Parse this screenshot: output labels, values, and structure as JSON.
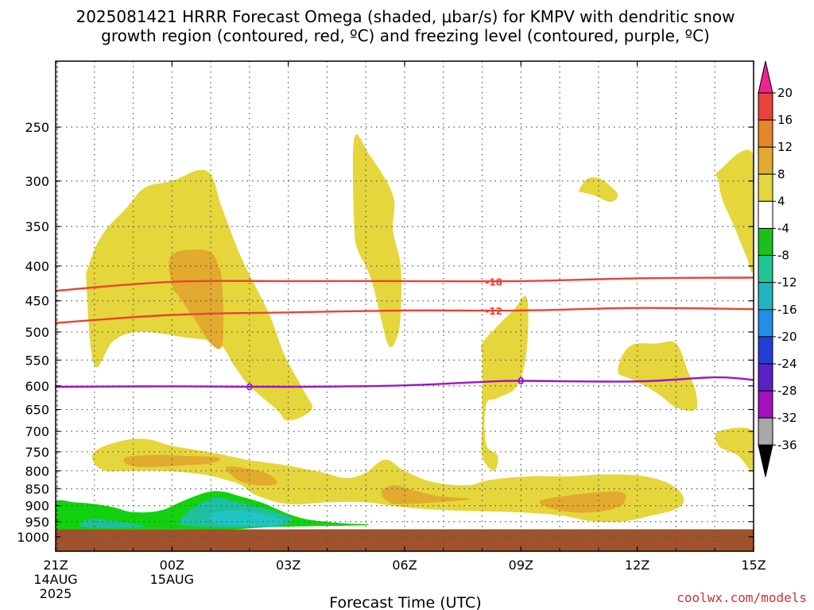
{
  "title_line1": "2025081421 HRRR Forecast Omega (shaded, μbar/s) for KMPV with dendritic snow",
  "title_line2": "growth region (contoured, red, ºC) and freezing level (contoured, purple, ºC)",
  "credit": "coolwx.com/models",
  "credit_color": "#cc3333",
  "chart_data": {
    "type": "time-height cross section",
    "title": "2025081421 HRRR Forecast Omega (shaded, μbar/s) for KMPV with dendritic snow growth region (contoured, red, ºC) and freezing level (contoured, purple, ºC)",
    "xlabel": "Forecast Time (UTC)",
    "ylabel": "",
    "x_ticks": [
      {
        "hours": 0,
        "label": "21Z",
        "date": "14AUG",
        "year": "2025"
      },
      {
        "hours": 3,
        "label": "00Z",
        "date": "15AUG"
      },
      {
        "hours": 6,
        "label": "03Z"
      },
      {
        "hours": 9,
        "label": "06Z"
      },
      {
        "hours": 12,
        "label": "09Z"
      },
      {
        "hours": 15,
        "label": "12Z"
      },
      {
        "hours": 18,
        "label": "15Z"
      }
    ],
    "xlim": [
      0,
      18
    ],
    "y_ticks": [
      250,
      300,
      350,
      400,
      450,
      500,
      550,
      600,
      650,
      700,
      750,
      800,
      850,
      900,
      950,
      1000
    ],
    "ylim": [
      200,
      1050
    ],
    "y_scale": "log pressure (hPa)",
    "grid": true,
    "colorbar": {
      "ticks": [
        "20",
        "16",
        "12",
        "8",
        "4",
        "-4",
        "-8",
        "-12",
        "-16",
        "-20",
        "-24",
        "-28",
        "-32",
        "-36"
      ],
      "colors": [
        "#f0228c",
        "#e8433a",
        "#e7852a",
        "#e2aa2e",
        "#e5d63b",
        "#ffffff",
        "#19c21b",
        "#1fc597",
        "#21b6bf",
        "#1f8fe7",
        "#2240d8",
        "#5b21c6",
        "#a210c2",
        "#a8a8a8",
        "#000000"
      ]
    },
    "shading_colors": {
      "yellow": "#e5d63b",
      "orange": "#e2aa2e",
      "green": "#12d10f",
      "teal": "#1fc0a0",
      "cyan": "#21c5c5",
      "ground": "#a0522d"
    },
    "contours": [
      {
        "name": "-18",
        "color": "#ea4335",
        "points": [
          [
            0,
            435
          ],
          [
            3,
            422
          ],
          [
            6,
            421
          ],
          [
            9,
            421
          ],
          [
            12,
            421
          ],
          [
            15,
            417
          ],
          [
            18,
            416
          ]
        ]
      },
      {
        "name": "-12",
        "color": "#ea4335",
        "points": [
          [
            0,
            485
          ],
          [
            3,
            472
          ],
          [
            6,
            468
          ],
          [
            9,
            465
          ],
          [
            12,
            465
          ],
          [
            15,
            461
          ],
          [
            18,
            463
          ]
        ]
      },
      {
        "name": "0",
        "color": "#9b16c6",
        "points": [
          [
            0,
            602
          ],
          [
            3,
            601
          ],
          [
            6,
            602
          ],
          [
            9,
            599
          ],
          [
            11,
            592
          ],
          [
            12,
            590
          ],
          [
            15,
            591
          ],
          [
            17,
            583
          ],
          [
            18,
            588
          ]
        ]
      }
    ],
    "contour_labels": [
      {
        "text": "-18",
        "x": 11.3,
        "p": 422,
        "color": "#ea4335"
      },
      {
        "text": "-12",
        "x": 11.3,
        "p": 466,
        "color": "#ea4335"
      },
      {
        "text": "0",
        "x": 5.0,
        "p": 602,
        "color": "#9b16c6"
      },
      {
        "text": "0",
        "x": 12.0,
        "p": 590,
        "color": "#9b16c6"
      }
    ],
    "shaded_regions": [
      {
        "level": "4 to 8",
        "color": "yellow",
        "points": [
          [
            1,
            560
          ],
          [
            0.8,
            430
          ],
          [
            0.85,
            400
          ],
          [
            1.2,
            360
          ],
          [
            1.8,
            330
          ],
          [
            2.3,
            307
          ],
          [
            3.0,
            300
          ],
          [
            3.9,
            290
          ],
          [
            4.3,
            330
          ],
          [
            4.8,
            390
          ],
          [
            5.5,
            470
          ],
          [
            5.9,
            540
          ],
          [
            6.4,
            610
          ],
          [
            6.6,
            650
          ],
          [
            6.0,
            675
          ],
          [
            5.7,
            650
          ],
          [
            5.0,
            600
          ],
          [
            4.6,
            560
          ],
          [
            4.2,
            520
          ],
          [
            3.4,
            510
          ],
          [
            2.2,
            500
          ],
          [
            1.5,
            515
          ]
        ]
      },
      {
        "level": "8 to 12",
        "color": "orange",
        "points": [
          [
            3.0,
            425
          ],
          [
            3.0,
            385
          ],
          [
            3.9,
            380
          ],
          [
            4.2,
            400
          ],
          [
            4.3,
            430
          ],
          [
            4.3,
            520
          ],
          [
            4.0,
            520
          ],
          [
            3.6,
            480
          ],
          [
            3.2,
            445
          ]
        ]
      },
      {
        "level": "4 to 8",
        "color": "yellow",
        "points": [
          [
            7.7,
            350
          ],
          [
            7.7,
            260
          ],
          [
            8.1,
            275
          ],
          [
            8.7,
            315
          ],
          [
            8.7,
            355
          ],
          [
            8.9,
            400
          ],
          [
            8.9,
            470
          ],
          [
            8.8,
            510
          ],
          [
            8.6,
            525
          ],
          [
            8.4,
            480
          ],
          [
            8.2,
            430
          ],
          [
            8.0,
            400
          ],
          [
            7.8,
            380
          ]
        ]
      },
      {
        "level": "4 to 8",
        "color": "yellow",
        "points": [
          [
            11.0,
            545
          ],
          [
            11.0,
            520
          ],
          [
            11.4,
            490
          ],
          [
            11.8,
            465
          ],
          [
            12.15,
            445
          ],
          [
            12.15,
            530
          ],
          [
            11.9,
            600
          ],
          [
            11.4,
            625
          ],
          [
            11.1,
            640
          ],
          [
            11.1,
            730
          ],
          [
            11.4,
            760
          ],
          [
            11.3,
            800
          ],
          [
            11.0,
            760
          ],
          [
            11.0,
            680
          ],
          [
            11.0,
            600
          ]
        ]
      },
      {
        "level": "4 to 8",
        "color": "yellow",
        "points": [
          [
            13.5,
            310
          ],
          [
            13.7,
            298
          ],
          [
            14.0,
            297
          ],
          [
            14.3,
            305
          ],
          [
            14.5,
            315
          ],
          [
            14.3,
            322
          ],
          [
            13.9,
            315
          ],
          [
            13.6,
            312
          ]
        ]
      },
      {
        "level": "4 to 8",
        "color": "yellow",
        "points": [
          [
            14.5,
            570
          ],
          [
            14.8,
            525
          ],
          [
            15.5,
            520
          ],
          [
            16.0,
            520
          ],
          [
            16.3,
            570
          ],
          [
            16.5,
            610
          ],
          [
            16.5,
            650
          ],
          [
            16.0,
            645
          ],
          [
            15.6,
            620
          ],
          [
            15.2,
            600
          ],
          [
            14.8,
            585
          ]
        ]
      },
      {
        "level": "4 to 8",
        "color": "yellow",
        "points": [
          [
            17.1,
            290
          ],
          [
            18.0,
            275
          ],
          [
            18.0,
            400
          ],
          [
            17.8,
            385
          ],
          [
            17.5,
            350
          ],
          [
            17.2,
            320
          ],
          [
            17.1,
            300
          ]
        ]
      },
      {
        "level": "4 to 8",
        "color": "yellow",
        "points": [
          [
            17.1,
            735
          ],
          [
            17.1,
            700
          ],
          [
            18.0,
            700
          ],
          [
            18.0,
            800
          ],
          [
            17.6,
            760
          ]
        ]
      },
      {
        "level": "4 to 8",
        "color": "yellow",
        "points": [
          [
            1.0,
            750
          ],
          [
            1.6,
            725
          ],
          [
            2.3,
            718
          ],
          [
            3.0,
            735
          ],
          [
            3.6,
            745
          ],
          [
            4.2,
            755
          ],
          [
            4.9,
            770
          ],
          [
            5.6,
            780
          ],
          [
            6.2,
            790
          ],
          [
            6.9,
            805
          ],
          [
            7.5,
            820
          ],
          [
            8.0,
            805
          ],
          [
            8.5,
            770
          ],
          [
            9.0,
            800
          ],
          [
            9.7,
            830
          ],
          [
            10.6,
            840
          ],
          [
            11.2,
            825
          ],
          [
            12.2,
            815
          ],
          [
            13.2,
            815
          ],
          [
            14.2,
            810
          ],
          [
            15.2,
            815
          ],
          [
            15.9,
            840
          ],
          [
            16.2,
            880
          ],
          [
            16.0,
            910
          ],
          [
            15.4,
            930
          ],
          [
            14.6,
            950
          ],
          [
            13.8,
            948
          ],
          [
            13.0,
            930
          ],
          [
            11.8,
            920
          ],
          [
            10.3,
            915
          ],
          [
            9.0,
            905
          ],
          [
            8.0,
            890
          ],
          [
            7.0,
            890
          ],
          [
            6.0,
            895
          ],
          [
            5.2,
            870
          ],
          [
            4.8,
            840
          ],
          [
            4.4,
            825
          ],
          [
            3.8,
            810
          ],
          [
            2.8,
            800
          ],
          [
            1.9,
            800
          ],
          [
            1.3,
            800
          ],
          [
            1.0,
            780
          ]
        ]
      },
      {
        "level": "8 to 12",
        "color": "orange",
        "points": [
          [
            1.8,
            765
          ],
          [
            2.5,
            758
          ],
          [
            3.2,
            760
          ],
          [
            4.2,
            765
          ],
          [
            4.0,
            780
          ],
          [
            3.3,
            785
          ],
          [
            2.5,
            790
          ],
          [
            1.9,
            785
          ]
        ]
      },
      {
        "level": "8 to 12",
        "color": "orange",
        "points": [
          [
            4.4,
            790
          ],
          [
            5.0,
            795
          ],
          [
            5.5,
            810
          ],
          [
            5.7,
            835
          ],
          [
            5.2,
            840
          ],
          [
            4.7,
            825
          ]
        ]
      },
      {
        "level": "8 to 12",
        "color": "orange",
        "points": [
          [
            8.4,
            860
          ],
          [
            8.7,
            840
          ],
          [
            9.1,
            850
          ],
          [
            9.8,
            870
          ],
          [
            10.7,
            880
          ],
          [
            9.8,
            890
          ],
          [
            9.0,
            895
          ],
          [
            8.6,
            890
          ]
        ]
      },
      {
        "level": "8 to 12",
        "color": "orange",
        "points": [
          [
            12.5,
            885
          ],
          [
            13.2,
            870
          ],
          [
            14.0,
            860
          ],
          [
            14.6,
            860
          ],
          [
            14.7,
            880
          ],
          [
            14.5,
            905
          ],
          [
            13.9,
            920
          ],
          [
            13.3,
            920
          ],
          [
            12.7,
            905
          ]
        ]
      },
      {
        "level": "-8 to -4",
        "color": "green",
        "points": [
          [
            0,
            890
          ],
          [
            0.5,
            890
          ],
          [
            1.0,
            895
          ],
          [
            1.5,
            905
          ],
          [
            2.0,
            920
          ],
          [
            2.7,
            915
          ],
          [
            3.3,
            885
          ],
          [
            3.9,
            860
          ],
          [
            4.3,
            858
          ],
          [
            4.7,
            870
          ],
          [
            5.3,
            890
          ],
          [
            5.7,
            910
          ],
          [
            6.1,
            930
          ],
          [
            6.6,
            945
          ],
          [
            7.4,
            955
          ],
          [
            8.0,
            958
          ],
          [
            7.9,
            962
          ],
          [
            6.5,
            965
          ],
          [
            5.5,
            968
          ],
          [
            4.5,
            975
          ],
          [
            3.0,
            975
          ],
          [
            1.5,
            975
          ],
          [
            0,
            975
          ]
        ]
      },
      {
        "level": "-12 to -8",
        "color": "teal",
        "points": [
          [
            0.6,
            960
          ],
          [
            0.9,
            942
          ],
          [
            1.3,
            945
          ],
          [
            1.9,
            955
          ],
          [
            2.3,
            965
          ],
          [
            1.8,
            970
          ],
          [
            1.0,
            970
          ]
        ]
      },
      {
        "level": "-12 to -8",
        "color": "teal",
        "points": [
          [
            3.2,
            955
          ],
          [
            3.4,
            920
          ],
          [
            3.8,
            890
          ],
          [
            4.2,
            875
          ],
          [
            4.7,
            890
          ],
          [
            5.4,
            910
          ],
          [
            5.9,
            930
          ],
          [
            6.1,
            945
          ],
          [
            5.7,
            965
          ],
          [
            4.6,
            968
          ],
          [
            3.6,
            965
          ]
        ]
      },
      {
        "level": "-16 to -12",
        "color": "cyan",
        "points": [
          [
            4.0,
            945
          ],
          [
            4.0,
            925
          ],
          [
            4.5,
            915
          ],
          [
            5.0,
            920
          ],
          [
            5.6,
            935
          ],
          [
            5.9,
            950
          ],
          [
            5.6,
            962
          ],
          [
            4.8,
            962
          ],
          [
            4.2,
            958
          ]
        ]
      }
    ],
    "ground": {
      "top_p": 975,
      "color": "ground"
    }
  }
}
